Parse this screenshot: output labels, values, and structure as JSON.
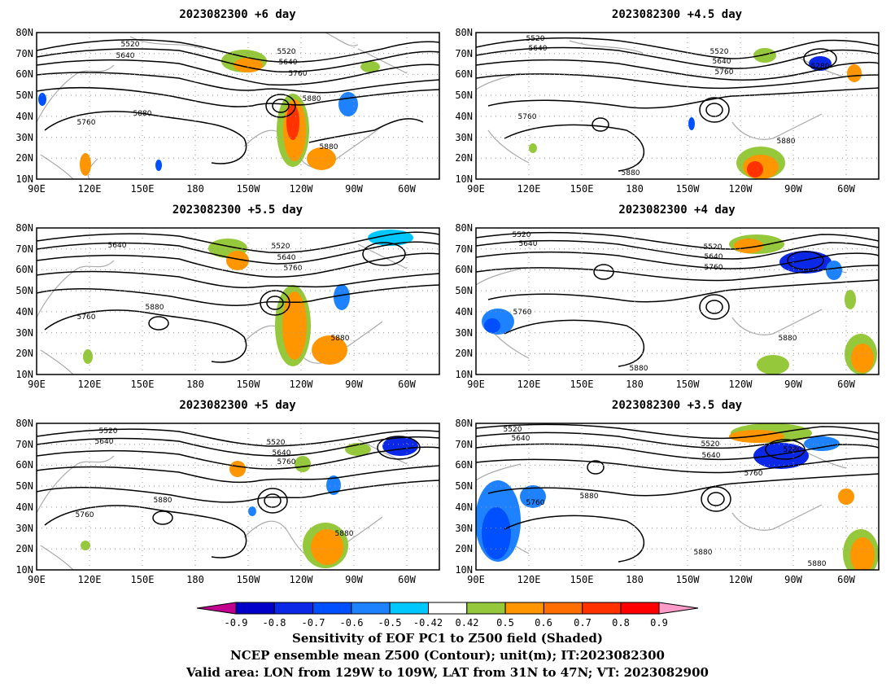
{
  "figure": {
    "panels": [
      {
        "title": "2023082300 +6 day"
      },
      {
        "title": "2023082300 +4.5 day"
      },
      {
        "title": "2023082300 +5.5 day"
      },
      {
        "title": "2023082300 +4 day"
      },
      {
        "title": "2023082300 +5 day"
      },
      {
        "title": "2023082300 +3.5 day"
      }
    ],
    "lon_ticks": [
      "90E",
      "120E",
      "150E",
      "180",
      "150W",
      "120W",
      "90W",
      "60W"
    ],
    "lat_ticks": [
      "10N",
      "20N",
      "30N",
      "40N",
      "50N",
      "60N",
      "70N",
      "80N"
    ],
    "colorbar": {
      "labels": [
        "-0.9",
        "-0.8",
        "-0.7",
        "-0.6",
        "-0.5",
        "-0.42",
        "0.42",
        "0.5",
        "0.6",
        "0.7",
        "0.8",
        "0.9"
      ],
      "colors": [
        "#c20090",
        "#0000c8",
        "#0a28e6",
        "#0050ff",
        "#1e82ff",
        "#00c8ff",
        "#ffffff",
        "#96c83c",
        "#ff9600",
        "#ff6e00",
        "#ff3200",
        "#ff0000",
        "#ff9bc8"
      ]
    },
    "caption": {
      "line1": "Sensitivity of EOF PC1 to Z500 field (Shaded)",
      "line2": "NCEP ensemble mean Z500 (Contour); unit(m); IT:2023082300",
      "line3": "Valid area: LON from 129W to 109W, LAT from 31N to 47N; VT: 2023082900"
    }
  },
  "contour_labels": [
    [
      "5520",
      "5640",
      "5520",
      "5640",
      "5760",
      "5880",
      "5760",
      "5880",
      "5880"
    ],
    [
      "5520",
      "5640",
      "5520",
      "5640",
      "5760",
      "5280",
      "5760",
      "5880",
      "5880"
    ],
    [
      "5640",
      "5520",
      "5640",
      "5760",
      "5880",
      "5760",
      "5880"
    ],
    [
      "5520",
      "5640",
      "5520",
      "5640",
      "5760",
      "5760",
      "5880",
      "5880"
    ],
    [
      "5520",
      "5640",
      "5520",
      "5640",
      "5760",
      "5880",
      "5760",
      "5880"
    ],
    [
      "5520",
      "5640",
      "5520",
      "5640",
      "5280",
      "5760",
      "5880",
      "5760",
      "5880",
      "5880"
    ]
  ],
  "chart_data": {
    "type": "map",
    "lon_range": [
      "90E",
      "60W"
    ],
    "lat_range": [
      "10N",
      "80N"
    ],
    "shaded": "Sensitivity of EOF PC1 to Z500 field (Shaded)",
    "contour": "NCEP ensemble mean Z500 (Contour); unit(m)"
  }
}
